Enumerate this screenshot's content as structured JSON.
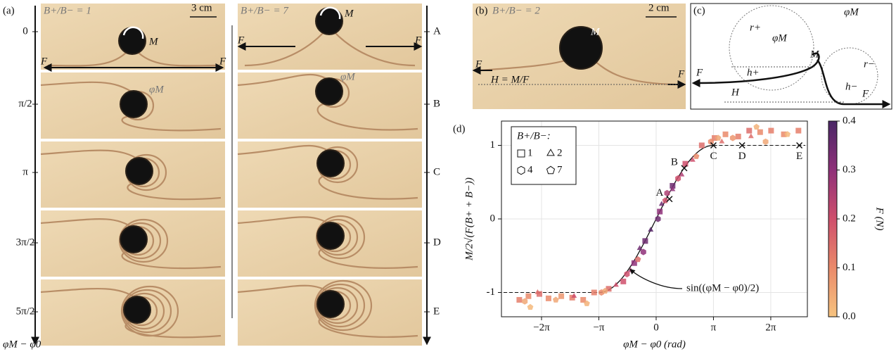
{
  "panel_a": {
    "label": "(a)",
    "left_title": "B+/B− = 1",
    "scale": "3 cm",
    "right_title": "B+/B− = 7",
    "moment": "M",
    "force": "F",
    "angle": "φM",
    "phases": [
      "0",
      "π/2",
      "π",
      "3π/2",
      "5π/2"
    ],
    "axis": "φM − φ0",
    "states": [
      "A",
      "B",
      "C",
      "D",
      "E"
    ]
  },
  "panel_b": {
    "label": "(b)",
    "title": "B+/B− = 2",
    "scale": "2 cm",
    "moment": "M",
    "force": "F",
    "height": "H = M/F"
  },
  "panel_c": {
    "label": "(c)",
    "r_plus": "r+",
    "r_minus": "r−",
    "angle": "φM",
    "moment": "M",
    "h_plus": "h+",
    "h_minus": "h−",
    "height": "H",
    "force": "F"
  },
  "chart_data": {
    "type": "scatter",
    "panel_label": "(d)",
    "y_label": "M/2√(F(B+ + B−))",
    "x_label": "φM − φ0 (rad)",
    "xlim": [
      -8.48,
      8.29
    ],
    "ylim": [
      -1.33,
      1.33
    ],
    "xticks": [
      {
        "value": -6.283,
        "label": "−2π"
      },
      {
        "value": -3.1416,
        "label": "−π"
      },
      0,
      {
        "value": 3.1416,
        "label": "π"
      },
      {
        "value": 6.283,
        "label": "2π"
      }
    ],
    "yticks": [
      -1,
      0,
      1
    ],
    "grid": true,
    "legend_title": "B+/B−:",
    "legend": "upper left",
    "colorbar": {
      "label": "F (N)",
      "clim": [
        0,
        0.4
      ],
      "ticks": [
        {
          "value": 0,
          "label": "0.0"
        },
        0.1,
        0.2,
        0.3,
        0.4
      ],
      "colormap": [
        "#f6c37f",
        "#ea8a6a",
        "#cf4f6c",
        "#8f3079",
        "#4a2766"
      ]
    },
    "series": [
      {
        "name": "1",
        "marker": "square",
        "x": [
          -7.5,
          -7.0,
          -6.4,
          -5.9,
          -5.2,
          -4.6,
          -4.0,
          -3.4,
          -2.6,
          -1.8,
          -1.2,
          -0.6,
          0.2,
          0.9,
          1.6,
          2.5,
          3.2,
          3.8,
          4.5,
          5.1,
          5.7,
          6.3,
          7.0,
          7.8
        ],
        "values": [
          -1.1,
          -1.05,
          -1.02,
          -1.08,
          -1.05,
          -1.07,
          -1.1,
          -1.0,
          -0.95,
          -0.85,
          -0.6,
          -0.3,
          0.1,
          0.45,
          0.75,
          1.0,
          1.1,
          1.15,
          1.12,
          1.2,
          1.18,
          1.2,
          1.15,
          1.2
        ],
        "F": [
          0.12,
          0.1,
          0.15,
          0.1,
          0.08,
          0.12,
          0.1,
          0.12,
          0.15,
          0.2,
          0.3,
          0.35,
          0.3,
          0.35,
          0.2,
          0.15,
          0.12,
          0.1,
          0.12,
          0.15,
          0.1,
          0.12,
          0.1,
          0.12
        ]
      },
      {
        "name": "2",
        "marker": "triangle",
        "x": [
          -6.5,
          -4.5,
          -2.2,
          -1.4,
          -0.9,
          -0.3,
          0.3,
          0.9,
          1.4,
          2.0,
          3.6,
          5.2
        ],
        "values": [
          -1.0,
          -1.05,
          -0.9,
          -0.7,
          -0.4,
          -0.15,
          0.2,
          0.4,
          0.6,
          0.8,
          1.05,
          1.12
        ],
        "F": [
          0.15,
          0.2,
          0.2,
          0.25,
          0.35,
          0.38,
          0.35,
          0.3,
          0.25,
          0.2,
          0.15,
          0.15
        ]
      },
      {
        "name": "4",
        "marker": "hexagon",
        "x": [
          -7.2,
          -3.0,
          -1.6,
          -0.7,
          0.1,
          0.6,
          1.2,
          3.0,
          4.2,
          6.0
        ],
        "values": [
          -1.12,
          -1.0,
          -0.75,
          -0.45,
          0.0,
          0.35,
          0.55,
          1.05,
          1.1,
          1.05
        ],
        "F": [
          0.05,
          0.1,
          0.2,
          0.3,
          0.35,
          0.25,
          0.2,
          0.1,
          0.08,
          0.05
        ]
      },
      {
        "name": "7",
        "marker": "pentagon",
        "x": [
          -6.9,
          -5.5,
          -3.8,
          -2.8,
          -1.0,
          0.5,
          2.2,
          3.4,
          5.5,
          7.2
        ],
        "values": [
          -1.2,
          -1.1,
          -1.15,
          -0.98,
          -0.55,
          0.25,
          0.85,
          1.1,
          1.25,
          1.15
        ],
        "F": [
          0.02,
          0.05,
          0.03,
          0.05,
          0.15,
          0.2,
          0.1,
          0.05,
          0.03,
          0.02
        ]
      }
    ],
    "model_label": "sin((φM − φ0)/2)",
    "states": {
      "labels": [
        "A",
        "B",
        "C",
        "D",
        "E"
      ],
      "x": [
        0.73,
        1.54,
        3.1416,
        4.71,
        7.85
      ],
      "values": [
        0.27,
        0.69,
        1,
        1,
        1
      ]
    }
  }
}
